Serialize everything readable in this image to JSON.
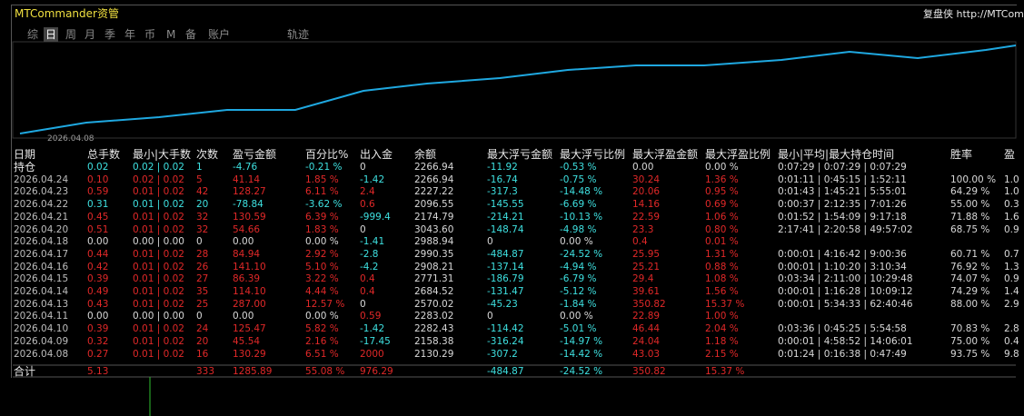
{
  "header": {
    "title": "MTCommander资管",
    "brand": "复盘侠 http://MTCom"
  },
  "tabs": [
    "综",
    "日",
    "周",
    "月",
    "季",
    "年",
    "币",
    "M",
    "备",
    "账户",
    "轨迹"
  ],
  "chart": {
    "x_label": "2026.04.08"
  },
  "table": {
    "columns": [
      "日期",
      "总手数",
      "最小|大手数",
      "次数",
      "盈亏金额",
      "百分比%",
      "出入金",
      "余额",
      "最大浮亏金额",
      "最大浮亏比例",
      "最大浮盈金额",
      "最大浮盈比例",
      "最小|平均|最大持仓时间",
      "胜率",
      "盈"
    ],
    "rows": [
      [
        "持仓",
        "0.02",
        "0.02 | 0.02",
        "1",
        "-4.76",
        "-0.21 %",
        "0",
        "2266.94",
        "-11.92",
        "-0.53 %",
        "0.00",
        "0.00 %",
        "0:07:29 | 0:07:29 | 0:07:29",
        null,
        null
      ],
      [
        "2026.04.24",
        "0.10",
        "0.02 | 0.02",
        "5",
        "41.14",
        "1.85 %",
        "-1.42",
        "2266.94",
        "-16.74",
        "-0.75 %",
        "30.24",
        "1.36 %",
        "0:01:11 | 0:45:15 | 1:52:11",
        "100.00 %",
        "1.0"
      ],
      [
        "2026.04.23",
        "0.59",
        "0.01 | 0.02",
        "42",
        "128.27",
        "6.11 %",
        "2.4",
        "2227.22",
        "-317.3",
        "-14.48 %",
        "20.06",
        "0.95 %",
        "0:01:43 | 1:45:21 | 5:55:01",
        "64.29 %",
        "1.0"
      ],
      [
        "2026.04.22",
        "0.31",
        "0.01 | 0.02",
        "20",
        "-78.84",
        "-3.62 %",
        "0.6",
        "2096.55",
        "-145.55",
        "-6.69 %",
        "14.16",
        "0.69 %",
        "0:00:37 | 2:12:35 | 7:01:26",
        "55.00 %",
        "0.3"
      ],
      [
        "2026.04.21",
        "0.45",
        "0.01 | 0.02",
        "32",
        "130.59",
        "6.39 %",
        "-999.4",
        "2174.79",
        "-214.21",
        "-10.13 %",
        "22.59",
        "1.06 %",
        "0:01:52 | 1:54:09 | 9:17:18",
        "71.88 %",
        "1.6"
      ],
      [
        "2026.04.20",
        "0.51",
        "0.01 | 0.02",
        "32",
        "54.66",
        "1.83 %",
        "0",
        "3043.60",
        "-148.74",
        "-4.98 %",
        "23.3",
        "0.80 %",
        "2:17:41 | 2:20:58 | 49:57:02",
        "68.75 %",
        "0.9"
      ],
      [
        "2026.04.18",
        "0.00",
        "0.00 | 0.00",
        "0",
        "0.00",
        "0.00 %",
        "-1.41",
        "2988.94",
        "0",
        "0.00 %",
        "0.4",
        "0.01 %",
        null,
        null,
        null
      ],
      [
        "2026.04.17",
        "0.44",
        "0.01 | 0.02",
        "28",
        "84.94",
        "2.92 %",
        "-2.8",
        "2990.35",
        "-484.87",
        "-24.52 %",
        "25.95",
        "1.31 %",
        "0:00:01 | 4:16:42 | 9:00:36",
        "60.71 %",
        "0.7"
      ],
      [
        "2026.04.16",
        "0.42",
        "0.01 | 0.02",
        "26",
        "141.10",
        "5.10 %",
        "-4.2",
        "2908.21",
        "-137.14",
        "-4.94 %",
        "25.21",
        "0.88 %",
        "0:00:01 | 1:10:20 | 3:10:34",
        "76.92 %",
        "1.3"
      ],
      [
        "2026.04.15",
        "0.39",
        "0.01 | 0.02",
        "27",
        "86.39",
        "3.22 %",
        "0.4",
        "2771.31",
        "-186.79",
        "-6.79 %",
        "29.4",
        "1.08 %",
        "0:03:34 | 2:11:00 | 10:29:48",
        "74.07 %",
        "0.9"
      ],
      [
        "2026.04.14",
        "0.49",
        "0.01 | 0.02",
        "35",
        "114.10",
        "4.44 %",
        "0.4",
        "2684.52",
        "-131.47",
        "-5.12 %",
        "39.61",
        "1.56 %",
        "0:00:01 | 1:16:28 | 10:09:12",
        "74.29 %",
        "1.4"
      ],
      [
        "2026.04.13",
        "0.43",
        "0.01 | 0.02",
        "25",
        "287.00",
        "12.57 %",
        "0",
        "2570.02",
        "-45.23",
        "-1.84 %",
        "350.82",
        "15.37 %",
        "0:00:01 | 5:34:33 | 62:40:46",
        "88.00 %",
        "2.9"
      ],
      [
        "2026.04.11",
        "0.00",
        "0.00 | 0.00",
        "0",
        "0.00",
        "0.00 %",
        "0.59",
        "2283.02",
        "0",
        "0.00 %",
        "22.89",
        "1.00 %",
        null,
        null,
        null
      ],
      [
        "2026.04.10",
        "0.39",
        "0.01 | 0.02",
        "24",
        "125.47",
        "5.82 %",
        "-1.42",
        "2282.43",
        "-114.42",
        "-5.01 %",
        "46.44",
        "2.04 %",
        "0:03:36 | 0:45:25 | 5:54:58",
        "70.83 %",
        "2.8"
      ],
      [
        "2026.04.09",
        "0.32",
        "0.01 | 0.02",
        "20",
        "45.54",
        "2.16 %",
        "-17.45",
        "2158.38",
        "-316.24",
        "-14.97 %",
        "24.04",
        "1.18 %",
        "0:00:01 | 4:58:52 | 14:06:01",
        "75.00 %",
        "0.4"
      ],
      [
        "2026.04.08",
        "0.27",
        "0.01 | 0.02",
        "16",
        "130.29",
        "6.51 %",
        "2000",
        "2130.29",
        "-307.2",
        "-14.42 %",
        "43.03",
        "2.15 %",
        "0:01:24 | 0:16:38 | 0:47:49",
        "93.75 %",
        "9.8"
      ],
      [
        "合计",
        "5.13",
        null,
        "333",
        "1285.89",
        "55.08 %",
        "976.29",
        null,
        "-484.87",
        "-24.52 %",
        "350.82",
        "15.37 %",
        null,
        null,
        null
      ]
    ]
  }
}
